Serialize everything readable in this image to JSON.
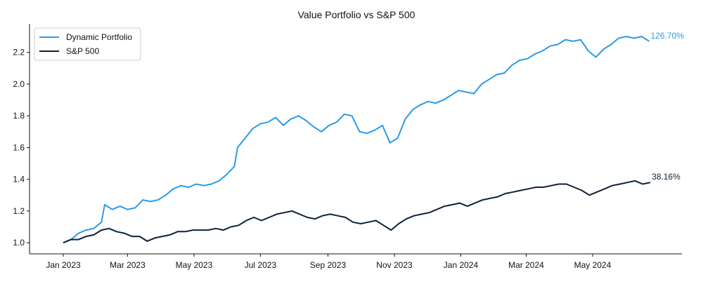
{
  "chart_data": {
    "type": "line",
    "title": "Value Portfolio vs S&P 500",
    "xlabel": "",
    "ylabel": "",
    "x_ticks": [
      "Jan 2023",
      "Mar 2023",
      "May 2023",
      "Jul 2023",
      "Sep 2023",
      "Nov 2023",
      "Jan 2024",
      "Mar 2024",
      "May 2024"
    ],
    "y_ticks": [
      "1.0",
      "1.2",
      "1.4",
      "1.6",
      "1.8",
      "2.0",
      "2.2"
    ],
    "xlim": [
      "2022-12-01",
      "2024-07-22"
    ],
    "ylim": [
      0.93,
      2.38
    ],
    "grid": false,
    "legend_position": "top-left",
    "series": [
      {
        "name": "Dynamic Portfolio",
        "color": "#2b9be6",
        "end_label": "126.70%",
        "points": [
          [
            "2023-01-01",
            1.0
          ],
          [
            "2023-01-08",
            1.02
          ],
          [
            "2023-01-15",
            1.06
          ],
          [
            "2023-01-22",
            1.08
          ],
          [
            "2023-01-29",
            1.09
          ],
          [
            "2023-02-05",
            1.13
          ],
          [
            "2023-02-08",
            1.24
          ],
          [
            "2023-02-15",
            1.21
          ],
          [
            "2023-02-22",
            1.23
          ],
          [
            "2023-03-01",
            1.21
          ],
          [
            "2023-03-08",
            1.22
          ],
          [
            "2023-03-15",
            1.27
          ],
          [
            "2023-03-22",
            1.26
          ],
          [
            "2023-03-29",
            1.27
          ],
          [
            "2023-04-05",
            1.3
          ],
          [
            "2023-04-12",
            1.34
          ],
          [
            "2023-04-19",
            1.36
          ],
          [
            "2023-04-26",
            1.35
          ],
          [
            "2023-05-03",
            1.37
          ],
          [
            "2023-05-10",
            1.36
          ],
          [
            "2023-05-17",
            1.37
          ],
          [
            "2023-05-24",
            1.39
          ],
          [
            "2023-05-31",
            1.43
          ],
          [
            "2023-06-07",
            1.48
          ],
          [
            "2023-06-10",
            1.6
          ],
          [
            "2023-06-17",
            1.66
          ],
          [
            "2023-06-24",
            1.72
          ],
          [
            "2023-07-01",
            1.75
          ],
          [
            "2023-07-08",
            1.76
          ],
          [
            "2023-07-15",
            1.79
          ],
          [
            "2023-07-22",
            1.74
          ],
          [
            "2023-07-29",
            1.78
          ],
          [
            "2023-08-05",
            1.8
          ],
          [
            "2023-08-12",
            1.77
          ],
          [
            "2023-08-19",
            1.73
          ],
          [
            "2023-08-26",
            1.7
          ],
          [
            "2023-09-02",
            1.74
          ],
          [
            "2023-09-09",
            1.76
          ],
          [
            "2023-09-16",
            1.81
          ],
          [
            "2023-09-23",
            1.8
          ],
          [
            "2023-09-30",
            1.7
          ],
          [
            "2023-10-07",
            1.69
          ],
          [
            "2023-10-14",
            1.71
          ],
          [
            "2023-10-21",
            1.74
          ],
          [
            "2023-10-28",
            1.63
          ],
          [
            "2023-11-04",
            1.66
          ],
          [
            "2023-11-11",
            1.78
          ],
          [
            "2023-11-18",
            1.84
          ],
          [
            "2023-11-25",
            1.87
          ],
          [
            "2023-12-02",
            1.89
          ],
          [
            "2023-12-09",
            1.88
          ],
          [
            "2023-12-16",
            1.9
          ],
          [
            "2023-12-23",
            1.93
          ],
          [
            "2023-12-30",
            1.96
          ],
          [
            "2024-01-06",
            1.95
          ],
          [
            "2024-01-13",
            1.94
          ],
          [
            "2024-01-20",
            2.0
          ],
          [
            "2024-01-27",
            2.03
          ],
          [
            "2024-02-03",
            2.06
          ],
          [
            "2024-02-10",
            2.07
          ],
          [
            "2024-02-17",
            2.12
          ],
          [
            "2024-02-24",
            2.15
          ],
          [
            "2024-03-02",
            2.16
          ],
          [
            "2024-03-09",
            2.19
          ],
          [
            "2024-03-16",
            2.21
          ],
          [
            "2024-03-23",
            2.24
          ],
          [
            "2024-03-30",
            2.25
          ],
          [
            "2024-04-06",
            2.28
          ],
          [
            "2024-04-13",
            2.27
          ],
          [
            "2024-04-20",
            2.28
          ],
          [
            "2024-04-27",
            2.21
          ],
          [
            "2024-05-04",
            2.17
          ],
          [
            "2024-05-11",
            2.22
          ],
          [
            "2024-05-18",
            2.25
          ],
          [
            "2024-05-25",
            2.29
          ],
          [
            "2024-06-01",
            2.3
          ],
          [
            "2024-06-08",
            2.29
          ],
          [
            "2024-06-15",
            2.3
          ],
          [
            "2024-06-22",
            2.27
          ]
        ]
      },
      {
        "name": "S&P 500",
        "color": "#0d2138",
        "end_label": "38.16%",
        "points": [
          [
            "2023-01-01",
            1.0
          ],
          [
            "2023-01-08",
            1.02
          ],
          [
            "2023-01-15",
            1.02
          ],
          [
            "2023-01-22",
            1.04
          ],
          [
            "2023-01-29",
            1.05
          ],
          [
            "2023-02-05",
            1.08
          ],
          [
            "2023-02-12",
            1.09
          ],
          [
            "2023-02-19",
            1.07
          ],
          [
            "2023-02-26",
            1.06
          ],
          [
            "2023-03-05",
            1.04
          ],
          [
            "2023-03-12",
            1.04
          ],
          [
            "2023-03-19",
            1.01
          ],
          [
            "2023-03-26",
            1.03
          ],
          [
            "2023-04-02",
            1.04
          ],
          [
            "2023-04-09",
            1.05
          ],
          [
            "2023-04-16",
            1.07
          ],
          [
            "2023-04-23",
            1.07
          ],
          [
            "2023-04-30",
            1.08
          ],
          [
            "2023-05-07",
            1.08
          ],
          [
            "2023-05-14",
            1.08
          ],
          [
            "2023-05-21",
            1.09
          ],
          [
            "2023-05-28",
            1.08
          ],
          [
            "2023-06-04",
            1.1
          ],
          [
            "2023-06-11",
            1.11
          ],
          [
            "2023-06-18",
            1.14
          ],
          [
            "2023-06-25",
            1.16
          ],
          [
            "2023-07-02",
            1.14
          ],
          [
            "2023-07-09",
            1.16
          ],
          [
            "2023-07-16",
            1.18
          ],
          [
            "2023-07-23",
            1.19
          ],
          [
            "2023-07-30",
            1.2
          ],
          [
            "2023-08-06",
            1.18
          ],
          [
            "2023-08-13",
            1.16
          ],
          [
            "2023-08-20",
            1.15
          ],
          [
            "2023-08-27",
            1.17
          ],
          [
            "2023-09-03",
            1.18
          ],
          [
            "2023-09-10",
            1.17
          ],
          [
            "2023-09-17",
            1.16
          ],
          [
            "2023-09-24",
            1.13
          ],
          [
            "2023-10-01",
            1.12
          ],
          [
            "2023-10-08",
            1.13
          ],
          [
            "2023-10-15",
            1.14
          ],
          [
            "2023-10-22",
            1.11
          ],
          [
            "2023-10-29",
            1.08
          ],
          [
            "2023-11-05",
            1.12
          ],
          [
            "2023-11-12",
            1.15
          ],
          [
            "2023-11-19",
            1.17
          ],
          [
            "2023-11-26",
            1.18
          ],
          [
            "2023-12-03",
            1.19
          ],
          [
            "2023-12-10",
            1.21
          ],
          [
            "2023-12-17",
            1.23
          ],
          [
            "2023-12-24",
            1.24
          ],
          [
            "2023-12-31",
            1.25
          ],
          [
            "2024-01-07",
            1.23
          ],
          [
            "2024-01-14",
            1.25
          ],
          [
            "2024-01-21",
            1.27
          ],
          [
            "2024-01-28",
            1.28
          ],
          [
            "2024-02-04",
            1.29
          ],
          [
            "2024-02-11",
            1.31
          ],
          [
            "2024-02-18",
            1.32
          ],
          [
            "2024-02-25",
            1.33
          ],
          [
            "2024-03-03",
            1.34
          ],
          [
            "2024-03-10",
            1.35
          ],
          [
            "2024-03-17",
            1.35
          ],
          [
            "2024-03-24",
            1.36
          ],
          [
            "2024-03-31",
            1.37
          ],
          [
            "2024-04-07",
            1.37
          ],
          [
            "2024-04-14",
            1.35
          ],
          [
            "2024-04-21",
            1.33
          ],
          [
            "2024-04-28",
            1.3
          ],
          [
            "2024-05-05",
            1.32
          ],
          [
            "2024-05-12",
            1.34
          ],
          [
            "2024-05-19",
            1.36
          ],
          [
            "2024-05-26",
            1.37
          ],
          [
            "2024-06-02",
            1.38
          ],
          [
            "2024-06-09",
            1.39
          ],
          [
            "2024-06-16",
            1.37
          ],
          [
            "2024-06-23",
            1.38
          ]
        ]
      }
    ]
  }
}
